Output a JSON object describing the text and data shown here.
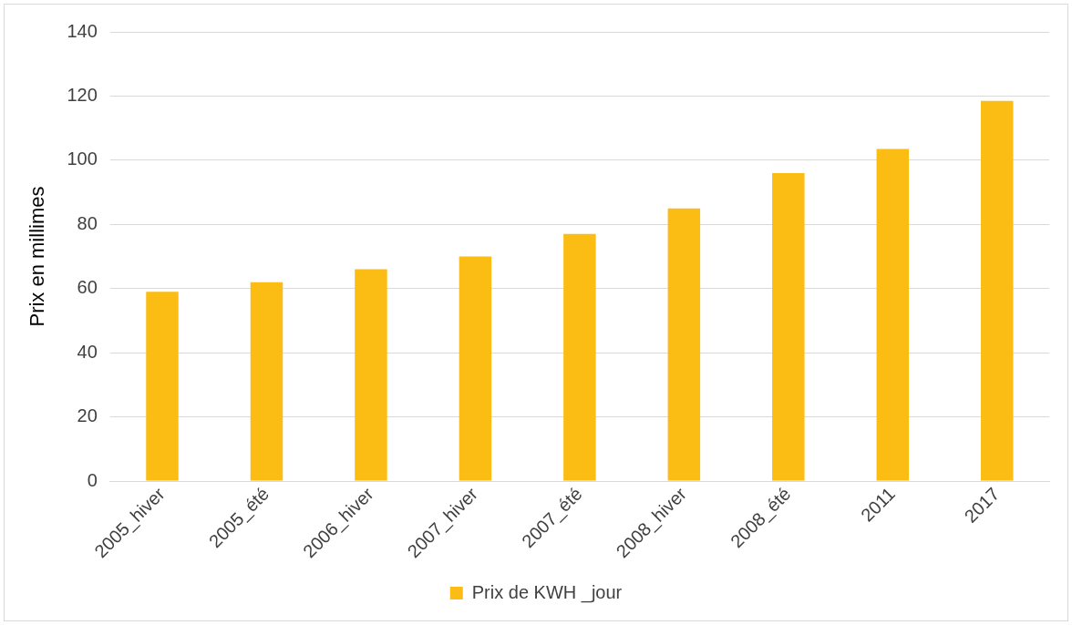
{
  "chart_data": {
    "type": "bar",
    "ylabel": "Prix en millimes",
    "categories": [
      "2005_hiver",
      "2005_été",
      "2006_hiver",
      "2007_hiver",
      "2007_été",
      "2008_hiver",
      "2008_été",
      "2011",
      "2017"
    ],
    "series": [
      {
        "name": "Prix de KWH _jour",
        "color": "#fbbc14",
        "values": [
          59,
          62,
          66,
          70,
          77,
          85,
          96,
          103.5,
          118.5
        ]
      }
    ],
    "ylim": [
      0,
      140
    ],
    "yticks": [
      0,
      20,
      40,
      60,
      80,
      100,
      120,
      140
    ],
    "grid": "y",
    "legend": "bottom"
  }
}
